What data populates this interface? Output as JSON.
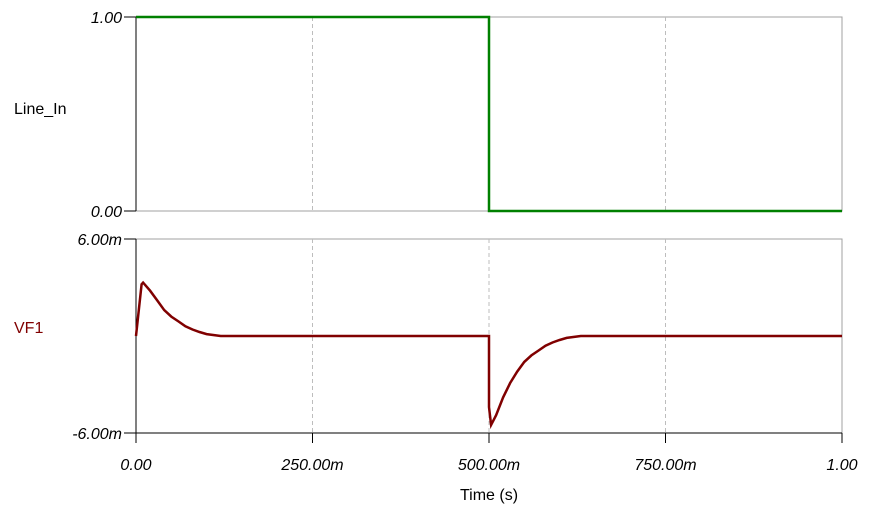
{
  "chart_data": [
    {
      "type": "line",
      "series": [
        {
          "name": "Line_In",
          "color": "#008000",
          "points": [
            [
              0.0,
              1.0
            ],
            [
              0.5,
              1.0
            ],
            [
              0.5,
              0.0
            ],
            [
              1.0,
              0.0
            ]
          ]
        }
      ],
      "ylim": [
        0.0,
        1.0
      ],
      "yticks": [
        0.0,
        1.0
      ],
      "yticklabels": [
        "0.00",
        "1.00"
      ],
      "ylabel": "Line_In",
      "xlim": [
        0.0,
        1.0
      ],
      "xgrid": true
    },
    {
      "type": "line",
      "series": [
        {
          "name": "VF1",
          "color": "#800000",
          "points": [
            [
              0.0,
              0.0
            ],
            [
              0.004,
              0.0016
            ],
            [
              0.008,
              0.0032
            ],
            [
              0.01,
              0.0033
            ],
            [
              0.02,
              0.0028
            ],
            [
              0.03,
              0.0022
            ],
            [
              0.04,
              0.0016
            ],
            [
              0.05,
              0.0012
            ],
            [
              0.06,
              0.0009
            ],
            [
              0.07,
              0.0006
            ],
            [
              0.08,
              0.0004
            ],
            [
              0.09,
              0.00025
            ],
            [
              0.1,
              0.00012
            ],
            [
              0.12,
              0.0
            ],
            [
              0.5,
              0.0
            ],
            [
              0.5,
              -0.0044
            ],
            [
              0.503,
              -0.0055
            ],
            [
              0.51,
              -0.0049
            ],
            [
              0.52,
              -0.0038
            ],
            [
              0.53,
              -0.0029
            ],
            [
              0.54,
              -0.0022
            ],
            [
              0.55,
              -0.0016
            ],
            [
              0.56,
              -0.0012
            ],
            [
              0.57,
              -0.0009
            ],
            [
              0.58,
              -0.0006
            ],
            [
              0.59,
              -0.0004
            ],
            [
              0.6,
              -0.00025
            ],
            [
              0.61,
              -0.00012
            ],
            [
              0.63,
              0.0
            ],
            [
              1.0,
              0.0
            ]
          ]
        }
      ],
      "ylim": [
        -0.006,
        0.006
      ],
      "yticks": [
        -0.006,
        0.006
      ],
      "yticklabels": [
        "-6.00m",
        "6.00m"
      ],
      "ylabel": "VF1",
      "xlim": [
        0.0,
        1.0
      ],
      "xticks": [
        0.0,
        0.25,
        0.5,
        0.75,
        1.0
      ],
      "xticklabels": [
        "0.00",
        "250.00m",
        "500.00m",
        "750.00m",
        "1.00"
      ],
      "xlabel": "Time (s)",
      "xgrid": true
    }
  ]
}
